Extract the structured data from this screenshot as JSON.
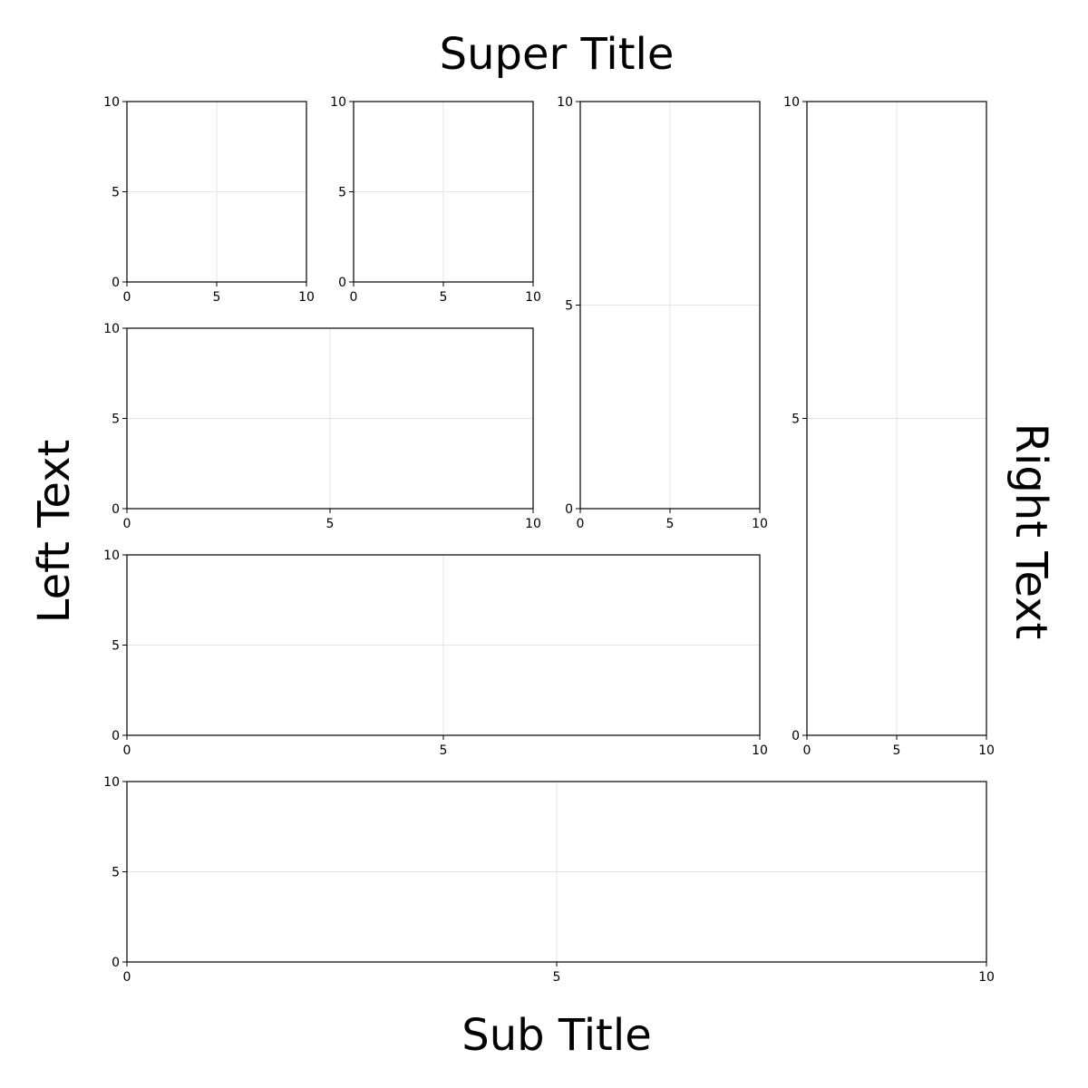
{
  "figure": {
    "super_title": "Super Title",
    "sub_title": "Sub Title",
    "left_text": "Left Text",
    "right_text": "Right Text"
  },
  "chart_data": [
    {
      "type": "scatter",
      "panel": "1",
      "xlim": [
        0,
        10
      ],
      "ylim": [
        0,
        10
      ],
      "xticks": [
        0,
        5,
        10
      ],
      "yticks": [
        0,
        5,
        10
      ],
      "grid": true,
      "series": []
    },
    {
      "type": "scatter",
      "panel": "2",
      "xlim": [
        0,
        10
      ],
      "ylim": [
        0,
        10
      ],
      "xticks": [
        0,
        5,
        10
      ],
      "yticks": [
        0,
        5,
        10
      ],
      "grid": true,
      "series": []
    },
    {
      "type": "scatter",
      "panel": "3",
      "xlim": [
        0,
        10
      ],
      "ylim": [
        0,
        10
      ],
      "xticks": [
        0,
        5,
        10
      ],
      "yticks": [
        0,
        5,
        10
      ],
      "grid": true,
      "series": []
    },
    {
      "type": "scatter",
      "panel": "4",
      "xlim": [
        0,
        10
      ],
      "ylim": [
        0,
        10
      ],
      "xticks": [
        0,
        5,
        10
      ],
      "yticks": [
        0,
        5,
        10
      ],
      "grid": true,
      "series": []
    },
    {
      "type": "scatter",
      "panel": "5",
      "xlim": [
        0,
        10
      ],
      "ylim": [
        0,
        10
      ],
      "xticks": [
        0,
        5,
        10
      ],
      "yticks": [
        0,
        5,
        10
      ],
      "grid": true,
      "series": []
    },
    {
      "type": "scatter",
      "panel": "6",
      "xlim": [
        0,
        10
      ],
      "ylim": [
        0,
        10
      ],
      "xticks": [
        0,
        5,
        10
      ],
      "yticks": [
        0,
        5,
        10
      ],
      "grid": true,
      "series": []
    },
    {
      "type": "scatter",
      "panel": "7",
      "xlim": [
        0,
        10
      ],
      "ylim": [
        0,
        10
      ],
      "xticks": [
        0,
        5,
        10
      ],
      "yticks": [
        0,
        5,
        10
      ],
      "grid": true,
      "series": []
    }
  ]
}
